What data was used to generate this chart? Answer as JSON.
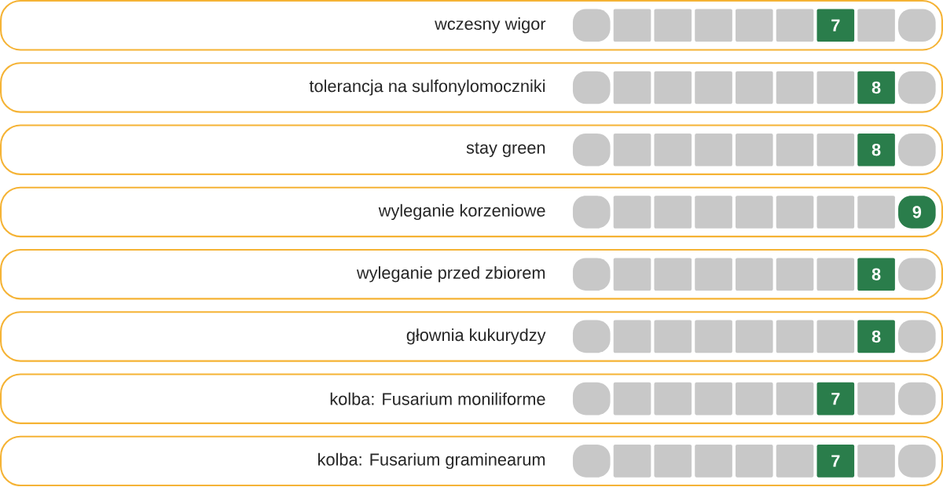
{
  "chart_data": {
    "type": "other",
    "categories": [
      "wczesny wigor",
      "tolerancja na sulfonylomoczniki",
      "stay green",
      "wyleganie korzeniowe",
      "wyleganie przed zbiorem",
      "głownia kukurydzy",
      "kolba: Fusarium moniliforme",
      "kolba: Fusarium graminearum"
    ],
    "values": [
      7,
      8,
      8,
      9,
      8,
      8,
      7,
      7
    ],
    "color": "#2a7d4b",
    "data_labels": true
  }
}
